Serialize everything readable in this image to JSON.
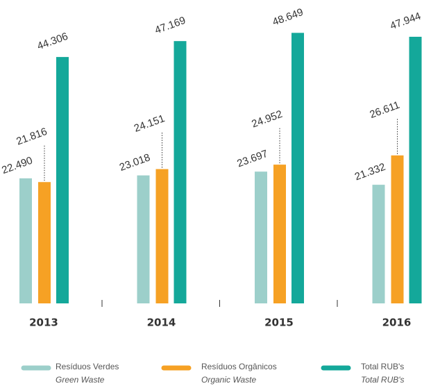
{
  "chart_data": {
    "type": "bar",
    "categories": [
      "2013",
      "2014",
      "2015",
      "2016"
    ],
    "series": [
      {
        "name": "Resíduos Verdes",
        "name_en": "Green Waste",
        "color": "#9ccfca",
        "values": [
          22490,
          23018,
          23697,
          21332
        ],
        "value_labels": [
          "22.490",
          "23.018",
          "23.697",
          "21.332"
        ]
      },
      {
        "name": "Resíduos Orgânicos",
        "name_en": "Organic Waste",
        "color": "#f6a124",
        "values": [
          21816,
          24151,
          24952,
          26611
        ],
        "value_labels": [
          "21.816",
          "24.151",
          "24.952",
          "26.611"
        ]
      },
      {
        "name": "Total RUB's",
        "name_en": "Total RUB's",
        "color": "#14a89a",
        "values": [
          44306,
          47169,
          48649,
          47944
        ],
        "value_labels": [
          "44.306",
          "47.169",
          "48.649",
          "47.944"
        ]
      }
    ]
  }
}
